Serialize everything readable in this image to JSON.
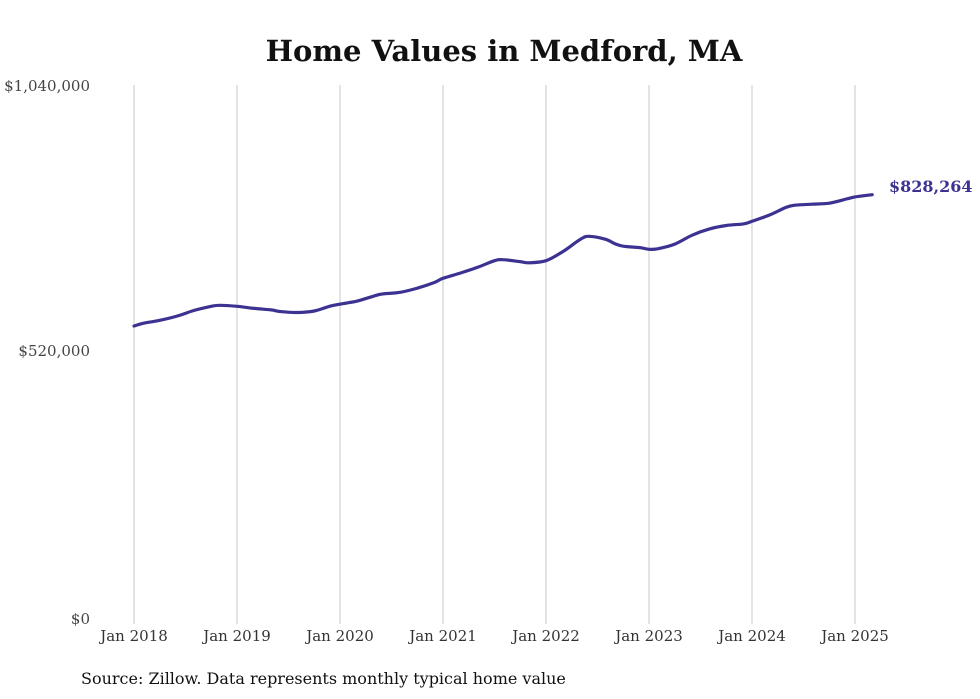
{
  "chart_data": {
    "type": "line",
    "title": "Home Values in Medford, MA",
    "y_ticks": [
      "$0",
      "$520,000",
      "$1,040,000"
    ],
    "y_tick_values": [
      0,
      520000,
      1040000
    ],
    "ylim": [
      0,
      1040000
    ],
    "x_ticks": [
      "Jan 2018",
      "Jan 2019",
      "Jan 2020",
      "Jan 2021",
      "Jan 2022",
      "Jan 2023",
      "Jan 2024",
      "Jan 2025"
    ],
    "x_tick_values": [
      "2018-01",
      "2019-01",
      "2020-01",
      "2021-01",
      "2022-01",
      "2023-01",
      "2024-01",
      "2025-01"
    ],
    "grid": "vertical",
    "end_label": "$828,264",
    "source": "Source: Zillow. Data represents monthly typical home value",
    "series": [
      {
        "color": "#3b3291",
        "points": [
          [
            "2018-01",
            575000
          ],
          [
            "2018-02",
            580000
          ],
          [
            "2018-04",
            586000
          ],
          [
            "2018-06",
            594000
          ],
          [
            "2018-08",
            605000
          ],
          [
            "2018-10",
            613000
          ],
          [
            "2018-11",
            615000
          ],
          [
            "2019-01",
            613000
          ],
          [
            "2019-03",
            609000
          ],
          [
            "2019-05",
            606000
          ],
          [
            "2019-06",
            603000
          ],
          [
            "2019-08",
            601000
          ],
          [
            "2019-10",
            604000
          ],
          [
            "2019-12",
            614000
          ],
          [
            "2020-02",
            620000
          ],
          [
            "2020-03",
            623000
          ],
          [
            "2020-05",
            633000
          ],
          [
            "2020-06",
            637000
          ],
          [
            "2020-08",
            640000
          ],
          [
            "2020-10",
            648000
          ],
          [
            "2020-12",
            659000
          ],
          [
            "2021-01",
            667000
          ],
          [
            "2021-03",
            677000
          ],
          [
            "2021-05",
            688000
          ],
          [
            "2021-07",
            701000
          ],
          [
            "2021-08",
            703000
          ],
          [
            "2021-10",
            699000
          ],
          [
            "2021-11",
            697000
          ],
          [
            "2022-01",
            701000
          ],
          [
            "2022-03",
            719000
          ],
          [
            "2022-05",
            742000
          ],
          [
            "2022-06",
            748000
          ],
          [
            "2022-08",
            742000
          ],
          [
            "2022-09",
            734000
          ],
          [
            "2022-10",
            729000
          ],
          [
            "2022-12",
            726000
          ],
          [
            "2023-01",
            723000
          ],
          [
            "2023-02",
            724000
          ],
          [
            "2023-04",
            733000
          ],
          [
            "2023-06",
            750000
          ],
          [
            "2023-08",
            762000
          ],
          [
            "2023-10",
            769000
          ],
          [
            "2023-12",
            772000
          ],
          [
            "2024-01",
            777000
          ],
          [
            "2024-03",
            789000
          ],
          [
            "2024-05",
            804000
          ],
          [
            "2024-06",
            808000
          ],
          [
            "2024-08",
            810000
          ],
          [
            "2024-10",
            812000
          ],
          [
            "2024-12",
            820000
          ],
          [
            "2025-01",
            824000
          ],
          [
            "2025-03",
            828264
          ]
        ]
      }
    ]
  }
}
